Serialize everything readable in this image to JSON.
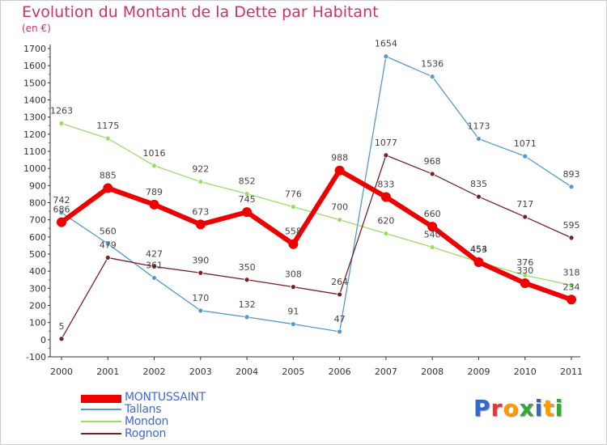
{
  "header": {
    "title": "Evolution du Montant de la Dette par Habitant",
    "subtitle": "(en €)"
  },
  "logo": {
    "text": "Proxiti"
  },
  "chart_data": {
    "type": "line",
    "title": "Evolution du Montant de la Dette par Habitant",
    "subtitle": "(en €)",
    "xlabel": "",
    "ylabel": "",
    "categories": [
      "2000",
      "2001",
      "2002",
      "2003",
      "2004",
      "2005",
      "2006",
      "2007",
      "2008",
      "2009",
      "2010",
      "2011"
    ],
    "ylim": [
      -100,
      1700
    ],
    "yticks": [
      -100,
      0,
      100,
      200,
      300,
      400,
      500,
      600,
      700,
      800,
      900,
      1000,
      1100,
      1200,
      1300,
      1400,
      1500,
      1600,
      1700
    ],
    "grid": false,
    "legend_position": "bottom-left",
    "series": [
      {
        "name": "Tallans",
        "color": "#5599cc",
        "values": [
          742,
          560,
          361,
          170,
          132,
          91,
          47,
          1654,
          1536,
          1173,
          1071,
          893
        ]
      },
      {
        "name": "Mondon",
        "color": "#99dd66",
        "values": [
          1263,
          1175,
          1016,
          922,
          852,
          776,
          700,
          620,
          540,
          454,
          376,
          318
        ]
      },
      {
        "name": "Rognon",
        "color": "#772222",
        "values": [
          5,
          479,
          427,
          390,
          350,
          308,
          264,
          1077,
          968,
          835,
          717,
          595
        ]
      },
      {
        "name": "MONTUSSAINT",
        "color": "#ee0000",
        "values": [
          686,
          885,
          789,
          673,
          745,
          558,
          988,
          833,
          660,
          453,
          330,
          234
        ]
      }
    ],
    "legend_order": [
      "MONTUSSAINT",
      "Tallans",
      "Mondon",
      "Rognon"
    ]
  }
}
